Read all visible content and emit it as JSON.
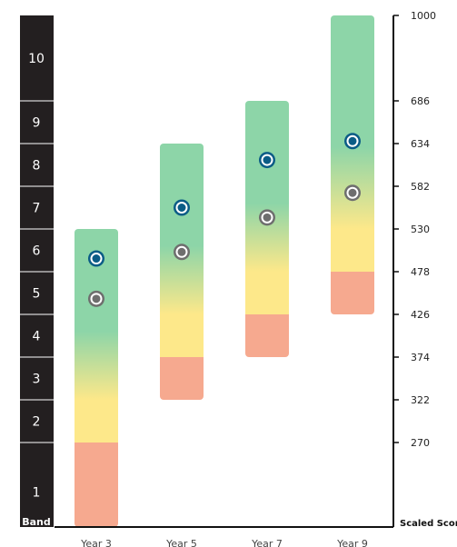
{
  "chart_data": {
    "type": "bar",
    "categories": [
      "Year 3",
      "Year 5",
      "Year 7",
      "Year 9"
    ],
    "bands": [
      {
        "label": "1",
        "low": 0,
        "high": 270
      },
      {
        "label": "2",
        "low": 270,
        "high": 322
      },
      {
        "label": "3",
        "low": 322,
        "high": 374
      },
      {
        "label": "4",
        "low": 374,
        "high": 426
      },
      {
        "label": "5",
        "low": 426,
        "high": 478
      },
      {
        "label": "6",
        "low": 478,
        "high": 530
      },
      {
        "label": "7",
        "low": 530,
        "high": 582
      },
      {
        "label": "8",
        "low": 582,
        "high": 634
      },
      {
        "label": "9",
        "low": 634,
        "high": 686
      },
      {
        "label": "10",
        "low": 686,
        "high": 1000
      }
    ],
    "band_axis_title": "Band",
    "ylabel": "Scaled Score",
    "yticks": [
      1000,
      686,
      634,
      582,
      530,
      478,
      426,
      374,
      322,
      270
    ],
    "ylim": [
      0,
      1000
    ],
    "ranges": [
      {
        "category": "Year 3",
        "low": 0,
        "red_top": 270,
        "yellow_top": 322,
        "high": 530
      },
      {
        "category": "Year 5",
        "low": 322,
        "red_top": 374,
        "yellow_top": 426,
        "high": 634
      },
      {
        "category": "Year 7",
        "low": 374,
        "red_top": 426,
        "yellow_top": 478,
        "high": 686
      },
      {
        "category": "Year 9",
        "low": 426,
        "red_top": 478,
        "yellow_top": 530,
        "high": 1000
      }
    ],
    "series": [
      {
        "values": [
          494,
          556,
          614,
          637
        ],
        "color": "#0b5c86"
      },
      {
        "values": [
          445,
          502,
          544,
          574
        ],
        "color": "#6e6e6e"
      }
    ],
    "colors": {
      "band_axis": "#231f20",
      "red": "#f6a98f",
      "yellow": "#fde88a",
      "green": "#8dd5a8",
      "axis": "#111111"
    }
  }
}
